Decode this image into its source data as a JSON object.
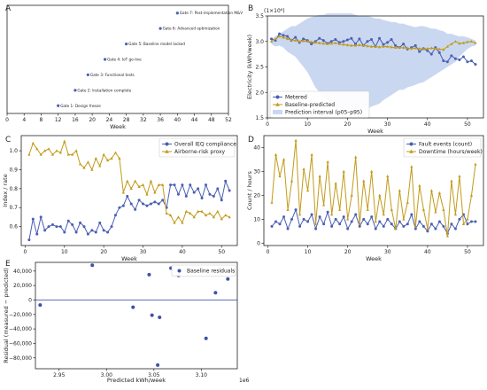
{
  "colors": {
    "blue": "#4a5fb3",
    "gold": "#c29b1a",
    "band": "#9db7e3",
    "resid_blue": "#3f51a8"
  },
  "panels": {
    "A": {
      "letter": "A"
    },
    "B": {
      "letter": "B"
    },
    "C": {
      "letter": "C"
    },
    "D": {
      "letter": "D"
    },
    "E": {
      "letter": "E"
    }
  },
  "chart_data": [
    {
      "id": "A",
      "type": "scatter",
      "xlabel": "Week",
      "ylabel": "",
      "xlim": [
        0,
        52
      ],
      "xticks": [
        0,
        4,
        8,
        12,
        16,
        20,
        24,
        28,
        32,
        36,
        40,
        44,
        48,
        52
      ],
      "points": [
        {
          "x": 12,
          "y": 1,
          "label": "Gate 1: Design freeze"
        },
        {
          "x": 16,
          "y": 2,
          "label": "Gate 2: Installation complete"
        },
        {
          "x": 19,
          "y": 3,
          "label": "Gate 3: Functional tests"
        },
        {
          "x": 23,
          "y": 4,
          "label": "Gate 4: IoT go-live"
        },
        {
          "x": 28,
          "y": 5,
          "label": "Gate 5: Baseline model locked"
        },
        {
          "x": 36,
          "y": 6,
          "label": "Gate 6: Advanced optimization"
        },
        {
          "x": 40,
          "y": 7,
          "label": "Gate 7: Post-implementation M&V"
        }
      ],
      "ylim": [
        0.5,
        7.5
      ]
    },
    {
      "id": "B",
      "type": "line",
      "xlabel": "Week",
      "ylabel": "Electricity (kWh/week)",
      "offset_label": "(1×10⁶)",
      "xlim": [
        0,
        54
      ],
      "ylim": [
        1.5,
        3.5
      ],
      "xticks": [
        0,
        10,
        20,
        30,
        40,
        50
      ],
      "yticks": [
        1.5,
        2.0,
        2.5,
        3.0,
        3.5
      ],
      "legend": [
        "Metered",
        "Baseline-predicted",
        "Prediction interval (p05–p95)"
      ],
      "legend_position": "bottom-left",
      "x": [
        1,
        2,
        3,
        4,
        5,
        6,
        7,
        8,
        9,
        10,
        11,
        12,
        13,
        14,
        15,
        16,
        17,
        18,
        19,
        20,
        21,
        22,
        23,
        24,
        25,
        26,
        27,
        28,
        29,
        30,
        31,
        32,
        33,
        34,
        35,
        36,
        37,
        38,
        39,
        40,
        41,
        42,
        43,
        44,
        45,
        46,
        47,
        48,
        49,
        50,
        51,
        52
      ],
      "series": [
        {
          "name": "Metered",
          "values": [
            3.05,
            3.02,
            3.15,
            3.12,
            3.1,
            3.02,
            3.08,
            2.98,
            3.05,
            3.02,
            2.95,
            3.0,
            3.06,
            3.02,
            2.96,
            3.0,
            3.04,
            2.98,
            3.0,
            3.03,
            3.06,
            2.95,
            3.05,
            2.92,
            3.0,
            3.04,
            2.9,
            3.06,
            2.94,
            2.98,
            3.04,
            2.92,
            2.88,
            2.95,
            2.85,
            2.88,
            2.92,
            2.8,
            2.86,
            2.82,
            2.75,
            2.88,
            2.78,
            2.62,
            2.6,
            2.72,
            2.66,
            2.64,
            2.7,
            2.6,
            2.62,
            2.55
          ]
        },
        {
          "name": "Baseline-predicted",
          "values": [
            3.0,
            3.05,
            3.1,
            3.08,
            3.05,
            3.03,
            3.02,
            3.0,
            3.01,
            3.0,
            2.99,
            2.98,
            2.97,
            2.96,
            2.95,
            2.96,
            2.97,
            2.95,
            2.94,
            2.93,
            2.92,
            2.92,
            2.93,
            2.92,
            2.91,
            2.9,
            2.9,
            2.89,
            2.9,
            2.9,
            2.89,
            2.88,
            2.88,
            2.88,
            2.87,
            2.86,
            2.87,
            2.86,
            2.85,
            2.86,
            2.87,
            2.86,
            2.85,
            2.84,
            2.9,
            2.95,
            3.0,
            2.96,
            2.97,
            2.99,
            3.0,
            2.97
          ]
        }
      ],
      "band_lower": [
        2.95,
        2.9,
        2.92,
        2.88,
        2.8,
        2.75,
        2.7,
        2.6,
        2.5,
        2.4,
        2.25,
        2.1,
        2.0,
        1.9,
        1.85,
        1.78,
        1.72,
        1.68,
        1.62,
        1.6,
        1.58,
        1.6,
        1.62,
        1.65,
        1.68,
        1.72,
        1.75,
        1.78,
        1.85,
        1.9,
        1.95,
        2.0,
        2.05,
        2.05,
        2.1,
        2.12,
        2.15,
        2.18,
        2.2,
        2.25,
        2.3,
        2.35,
        2.4,
        2.45,
        2.5,
        2.55,
        2.6,
        2.7,
        2.78,
        2.85,
        2.9,
        2.92
      ],
      "band_upper": [
        3.05,
        3.1,
        3.15,
        3.2,
        3.25,
        3.3,
        3.3,
        3.35,
        3.4,
        3.45,
        3.48,
        3.5,
        3.52,
        3.52,
        3.55,
        3.55,
        3.55,
        3.55,
        3.55,
        3.55,
        3.55,
        3.52,
        3.5,
        3.5,
        3.5,
        3.48,
        3.45,
        3.45,
        3.42,
        3.4,
        3.38,
        3.38,
        3.35,
        3.35,
        3.32,
        3.3,
        3.28,
        3.3,
        3.3,
        3.28,
        3.25,
        3.25,
        3.22,
        3.2,
        3.15,
        3.15,
        3.12,
        3.1,
        3.1,
        3.08,
        3.05,
        3.02
      ]
    },
    {
      "id": "C",
      "type": "line",
      "xlabel": "Week",
      "ylabel": "Index / rate",
      "xlim": [
        -1,
        54
      ],
      "ylim": [
        0.5,
        1.08
      ],
      "xticks": [
        0,
        10,
        20,
        30,
        40,
        50
      ],
      "yticks": [
        0.6,
        0.7,
        0.8,
        0.9,
        1.0
      ],
      "legend": [
        "Overall IEQ compliance",
        "Airborne-risk proxy"
      ],
      "legend_position": "top-right",
      "x": [
        1,
        2,
        3,
        4,
        5,
        6,
        7,
        8,
        9,
        10,
        11,
        12,
        13,
        14,
        15,
        16,
        17,
        18,
        19,
        20,
        21,
        22,
        23,
        24,
        25,
        26,
        27,
        28,
        29,
        30,
        31,
        32,
        33,
        34,
        35,
        36,
        37,
        38,
        39,
        40,
        41,
        42,
        43,
        44,
        45,
        46,
        47,
        48,
        49,
        50,
        51,
        52
      ],
      "series": [
        {
          "name": "Overall IEQ compliance",
          "values": [
            0.53,
            0.64,
            0.56,
            0.65,
            0.58,
            0.6,
            0.61,
            0.6,
            0.6,
            0.57,
            0.63,
            0.61,
            0.57,
            0.62,
            0.6,
            0.56,
            0.58,
            0.57,
            0.62,
            0.58,
            0.57,
            0.6,
            0.66,
            0.7,
            0.71,
            0.76,
            0.72,
            0.69,
            0.74,
            0.72,
            0.71,
            0.72,
            0.73,
            0.72,
            0.74,
            0.7,
            0.82,
            0.82,
            0.77,
            0.82,
            0.76,
            0.82,
            0.78,
            0.8,
            0.75,
            0.82,
            0.77,
            0.76,
            0.8,
            0.74,
            0.84,
            0.79
          ]
        },
        {
          "name": "Airborne-risk proxy",
          "values": [
            0.98,
            1.04,
            1.01,
            0.98,
            1.0,
            1.01,
            0.98,
            1.0,
            0.99,
            1.05,
            0.98,
            0.98,
            1.0,
            0.93,
            0.91,
            0.94,
            0.9,
            0.96,
            0.92,
            0.98,
            0.95,
            0.96,
            0.99,
            0.96,
            0.78,
            0.84,
            0.8,
            0.84,
            0.81,
            0.82,
            0.77,
            0.84,
            0.78,
            0.82,
            0.82,
            0.67,
            0.66,
            0.62,
            0.65,
            0.62,
            0.68,
            0.67,
            0.65,
            0.68,
            0.68,
            0.66,
            0.67,
            0.65,
            0.68,
            0.64,
            0.66,
            0.65
          ]
        }
      ]
    },
    {
      "id": "D",
      "type": "line",
      "xlabel": "Week",
      "ylabel": "Count / hours",
      "xlim": [
        -1,
        54
      ],
      "ylim": [
        -1,
        45
      ],
      "xticks": [
        0,
        10,
        20,
        30,
        40,
        50
      ],
      "yticks": [
        0,
        10,
        20,
        30,
        40
      ],
      "legend": [
        "Fault events (count)",
        "Downtime (hours/week)"
      ],
      "legend_position": "top-right",
      "x": [
        1,
        2,
        3,
        4,
        5,
        6,
        7,
        8,
        9,
        10,
        11,
        12,
        13,
        14,
        15,
        16,
        17,
        18,
        19,
        20,
        21,
        22,
        23,
        24,
        25,
        26,
        27,
        28,
        29,
        30,
        31,
        32,
        33,
        34,
        35,
        36,
        37,
        38,
        39,
        40,
        41,
        42,
        43,
        44,
        45,
        46,
        47,
        48,
        49,
        50,
        51,
        52
      ],
      "series": [
        {
          "name": "Fault events (count)",
          "values": [
            7,
            9,
            8,
            11,
            6,
            10,
            14,
            7,
            10,
            9,
            12,
            6,
            11,
            8,
            13,
            7,
            10,
            8,
            11,
            6,
            9,
            12,
            7,
            10,
            8,
            11,
            6,
            9,
            7,
            10,
            8,
            6,
            9,
            7,
            8,
            12,
            6,
            9,
            7,
            5,
            8,
            6,
            9,
            7,
            4,
            8,
            6,
            10,
            12,
            8,
            9,
            9
          ]
        },
        {
          "name": "Downtime (hours/week)",
          "values": [
            17,
            37,
            28,
            35,
            14,
            26,
            43,
            12,
            31,
            22,
            37,
            8,
            28,
            16,
            34,
            12,
            25,
            14,
            30,
            10,
            20,
            36,
            8,
            26,
            14,
            30,
            9,
            20,
            12,
            28,
            14,
            6,
            22,
            10,
            17,
            32,
            7,
            24,
            14,
            6,
            22,
            13,
            21,
            14,
            3,
            26,
            12,
            28,
            8,
            10,
            20,
            33
          ]
        }
      ]
    },
    {
      "id": "E",
      "type": "scatter",
      "xlabel": "Predicted kWh/week",
      "ylabel": "Residual (measured − predicted)",
      "offset_label": "1e6",
      "xlim": [
        2.925,
        3.138
      ],
      "ylim": [
        -95000,
        52000
      ],
      "xticks": [
        2.95,
        3.0,
        3.05,
        3.1
      ],
      "xticklabels": [
        "2.95",
        "3.00",
        "3.05",
        "3.10"
      ],
      "yticks": [
        -80000,
        -60000,
        -40000,
        -20000,
        0,
        20000,
        40000
      ],
      "yticklabels": [
        "−80,000",
        "−60,000",
        "−40,000",
        "−20,000",
        "0",
        "20,000",
        "40,000"
      ],
      "legend": [
        "Baseline residuals"
      ],
      "legend_position": "top-right",
      "points": [
        {
          "x": 2.93,
          "y": -7000
        },
        {
          "x": 2.985,
          "y": 48000
        },
        {
          "x": 3.028,
          "y": -10000
        },
        {
          "x": 3.045,
          "y": 35000
        },
        {
          "x": 3.048,
          "y": -21000
        },
        {
          "x": 3.056,
          "y": -24000
        },
        {
          "x": 3.054,
          "y": -90000
        },
        {
          "x": 3.068,
          "y": 44000
        },
        {
          "x": 3.076,
          "y": 34000
        },
        {
          "x": 3.105,
          "y": -53000
        },
        {
          "x": 3.115,
          "y": 10000
        },
        {
          "x": 3.128,
          "y": 29000
        }
      ]
    }
  ]
}
